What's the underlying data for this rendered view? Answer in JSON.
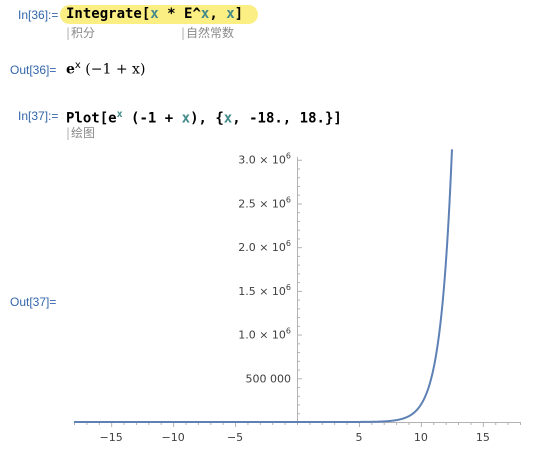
{
  "cells": {
    "in36_label": "In[36]:=",
    "in36_func": "Integrate",
    "in36_open": "[",
    "in36_arg1": "x",
    "in36_times": " * ",
    "in36_E": "E",
    "in36_pow": "^",
    "in36_arg2": "x",
    "in36_sep": ", ",
    "in36_var": "x",
    "in36_close": "]",
    "hint_integrate": "积分",
    "hint_exp": "自然常数",
    "out36_label": "Out[36]=",
    "out36_e": "e",
    "out36_sup": "x",
    "out36_paren_open": " (",
    "out36_minus1": "−1",
    "out36_plus": " + ",
    "out36_x": "x",
    "out36_paren_close": ")",
    "in37_label": "In[37]:=",
    "in37_func": "Plot",
    "in37_open": "[",
    "in37_e": "e",
    "in37_sup": "x",
    "in37_mid": " (-1 + ",
    "in37_x1": "x",
    "in37_mid2": "), {",
    "in37_x2": "x",
    "in37_range": ", -18., 18.}]",
    "hint_plot": "绘图",
    "out37_label": "Out[37]="
  },
  "chart_data": {
    "type": "line",
    "function": "e^x (x - 1)",
    "xlim": [
      -18,
      18
    ],
    "ylim": [
      0,
      3100000
    ],
    "x_ticks": [
      -15,
      -10,
      -5,
      0,
      5,
      10,
      15
    ],
    "x_tick_labels": [
      "−15",
      "−10",
      "−5",
      "",
      "5",
      "10",
      "15"
    ],
    "y_ticks": [
      500000,
      1000000,
      1500000,
      2000000,
      2500000,
      3000000
    ],
    "y_tick_labels": [
      {
        "main": "500 000",
        "exp": ""
      },
      {
        "main": "1.0 × 10",
        "exp": "6"
      },
      {
        "main": "1.5 × 10",
        "exp": "6"
      },
      {
        "main": "2.0 × 10",
        "exp": "6"
      },
      {
        "main": "2.5 × 10",
        "exp": "6"
      },
      {
        "main": "3.0 × 10",
        "exp": "6"
      }
    ],
    "series_color": "#5e81b5",
    "grid": false
  }
}
